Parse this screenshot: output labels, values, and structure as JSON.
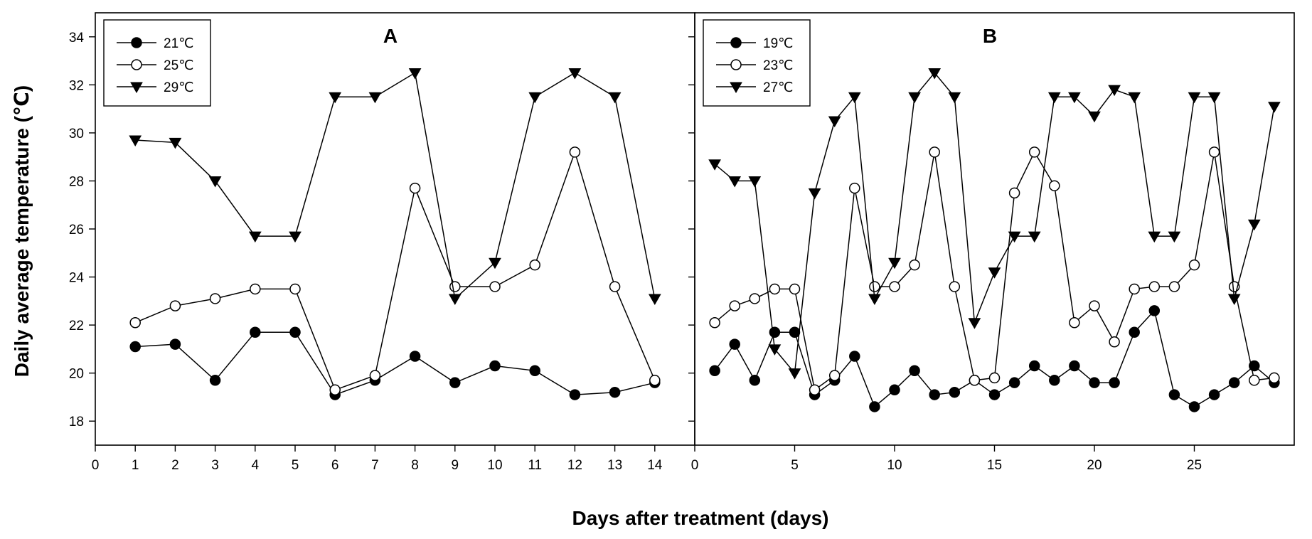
{
  "figure": {
    "xlabel": "Days after treatment (days)",
    "ylabel": "Daily average temperature (℃)"
  },
  "chart_data": [
    {
      "type": "line",
      "panel_label": "A",
      "x": [
        1,
        2,
        3,
        4,
        5,
        6,
        7,
        8,
        9,
        10,
        11,
        12,
        13,
        14
      ],
      "xlim": [
        0,
        15
      ],
      "xticks": [
        0,
        1,
        2,
        3,
        4,
        5,
        6,
        7,
        8,
        9,
        10,
        11,
        12,
        13,
        14
      ],
      "ylim": [
        17,
        35
      ],
      "yticks": [
        18,
        20,
        22,
        24,
        26,
        28,
        30,
        32,
        34
      ],
      "grid": false,
      "legend_position": "top-left",
      "series": [
        {
          "name": "21℃",
          "marker": "filled-circle",
          "values": [
            21.1,
            21.2,
            19.7,
            21.7,
            21.7,
            19.1,
            19.7,
            20.7,
            19.6,
            20.3,
            20.1,
            19.1,
            19.2,
            19.6
          ]
        },
        {
          "name": "25℃",
          "marker": "open-circle",
          "values": [
            22.1,
            22.8,
            23.1,
            23.5,
            23.5,
            19.3,
            19.9,
            27.7,
            23.6,
            23.6,
            24.5,
            29.2,
            23.6,
            19.7
          ]
        },
        {
          "name": "29℃",
          "marker": "filled-triangle-down",
          "values": [
            29.7,
            29.6,
            28.0,
            25.7,
            25.7,
            31.5,
            31.5,
            32.5,
            23.1,
            24.6,
            31.5,
            32.5,
            31.5,
            23.1
          ]
        }
      ]
    },
    {
      "type": "line",
      "panel_label": "B",
      "x": [
        1,
        2,
        3,
        4,
        5,
        6,
        7,
        8,
        9,
        10,
        11,
        12,
        13,
        14,
        15,
        16,
        17,
        18,
        19,
        20,
        21,
        22,
        23,
        24,
        25,
        26,
        27,
        28,
        29
      ],
      "xlim": [
        0,
        30
      ],
      "xticks": [
        0,
        5,
        10,
        15,
        20,
        25
      ],
      "ylim": [
        17,
        35
      ],
      "yticks": [
        18,
        20,
        22,
        24,
        26,
        28,
        30,
        32,
        34
      ],
      "grid": false,
      "legend_position": "top-left",
      "series": [
        {
          "name": "19℃",
          "marker": "filled-circle",
          "values": [
            20.1,
            21.2,
            19.7,
            21.7,
            21.7,
            19.1,
            19.7,
            20.7,
            18.6,
            19.3,
            20.1,
            19.1,
            19.2,
            19.7,
            19.1,
            19.6,
            20.3,
            19.7,
            20.3,
            19.6,
            19.6,
            21.7,
            22.6,
            19.1,
            18.6,
            19.1,
            19.6,
            20.3,
            19.6
          ]
        },
        {
          "name": "23℃",
          "marker": "open-circle",
          "values": [
            22.1,
            22.8,
            23.1,
            23.5,
            23.5,
            19.3,
            19.9,
            27.7,
            23.6,
            23.6,
            24.5,
            29.2,
            23.6,
            19.7,
            19.8,
            27.5,
            29.2,
            27.8,
            22.1,
            22.8,
            21.3,
            23.5,
            23.6,
            23.6,
            24.5,
            29.2,
            23.6,
            19.7,
            19.8
          ]
        },
        {
          "name": "27℃",
          "marker": "filled-triangle-down",
          "values": [
            28.7,
            28.0,
            28.0,
            21.0,
            20.0,
            27.5,
            30.5,
            31.5,
            23.1,
            24.6,
            31.5,
            32.5,
            31.5,
            22.1,
            24.2,
            25.7,
            25.7,
            31.5,
            31.5,
            30.7,
            31.8,
            31.5,
            25.7,
            25.7,
            31.5,
            31.5,
            23.1,
            26.2,
            31.1
          ]
        }
      ]
    }
  ]
}
